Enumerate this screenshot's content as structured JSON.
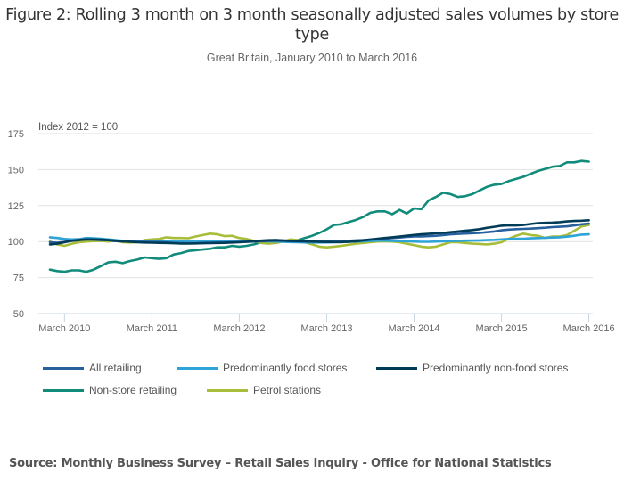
{
  "chart_data": {
    "type": "line",
    "title": "Figure 2: Rolling 3 month on 3 month seasonally adjusted sales volumes by store type",
    "subtitle": "Great Britain, January 2010 to March 2016",
    "ylabel": "Index 2012 = 100",
    "xlabel": "",
    "ylim": [
      50,
      175
    ],
    "yticks": [
      50,
      75,
      100,
      125,
      150,
      175
    ],
    "xticks": [
      "March 2010",
      "March 2011",
      "March 2012",
      "March 2013",
      "March 2014",
      "March 2015",
      "March 2016"
    ],
    "x_start": "January 2010",
    "x_end": "March 2016",
    "x_frequency": "monthly",
    "grid": true,
    "legend_position": "bottom",
    "series": [
      {
        "name": "All retailing",
        "color": "#27609c",
        "values": [
          99.5,
          99.2,
          99.8,
          100.6,
          101.2,
          101.5,
          101.3,
          101.0,
          100.9,
          100.3,
          100.2,
          100.0,
          99.9,
          99.8,
          99.7,
          99.6,
          99.4,
          99.0,
          98.8,
          98.8,
          98.9,
          99.0,
          99.2,
          99.3,
          99.4,
          99.5,
          99.7,
          99.8,
          100.0,
          100.2,
          100.4,
          100.6,
          100.5,
          100.3,
          100.2,
          100.1,
          100.0,
          100.0,
          100.1,
          100.2,
          100.3,
          100.5,
          100.8,
          101.0,
          101.3,
          101.6,
          102.0,
          102.4,
          102.8,
          103.2,
          103.5,
          103.6,
          103.8,
          104.0,
          104.5,
          105.0,
          105.3,
          105.6,
          105.8,
          106.0,
          106.5,
          107.0,
          107.8,
          108.3,
          108.6,
          108.8,
          109.0,
          109.3,
          109.6,
          110.0,
          110.3,
          110.6,
          111.2,
          112.0,
          112.5
        ]
      },
      {
        "name": "Predominantly food stores",
        "color": "#2ea3d7",
        "values": [
          103.0,
          102.5,
          101.8,
          101.5,
          101.6,
          102.5,
          102.2,
          102.0,
          101.5,
          101.0,
          100.5,
          100.2,
          100.0,
          100.0,
          100.1,
          100.0,
          100.0,
          100.2,
          100.3,
          100.4,
          100.5,
          100.5,
          100.5,
          100.3,
          100.2,
          100.2,
          100.4,
          100.6,
          100.5,
          100.3,
          100.2,
          100.0,
          99.8,
          99.6,
          99.5,
          99.4,
          99.3,
          99.3,
          99.4,
          99.5,
          99.6,
          99.8,
          100.0,
          100.2,
          100.4,
          100.6,
          100.6,
          100.5,
          100.3,
          100.2,
          100.0,
          99.8,
          99.8,
          100.0,
          100.2,
          100.4,
          100.5,
          100.6,
          100.7,
          100.8,
          101.0,
          101.2,
          101.5,
          101.8,
          102.0,
          102.0,
          102.2,
          102.4,
          102.6,
          102.8,
          103.0,
          103.4,
          104.0,
          104.8,
          105.0
        ]
      },
      {
        "name": "Predominantly non-food stores",
        "color": "#003c57",
        "values": [
          98.0,
          98.5,
          99.5,
          100.5,
          101.0,
          101.5,
          101.5,
          101.3,
          101.0,
          100.6,
          100.2,
          99.8,
          99.5,
          99.3,
          99.2,
          99.1,
          99.0,
          98.8,
          98.6,
          98.6,
          98.7,
          98.8,
          98.9,
          99.0,
          99.1,
          99.3,
          99.5,
          99.8,
          100.2,
          100.6,
          100.9,
          101.0,
          100.8,
          100.5,
          100.3,
          100.2,
          100.0,
          99.8,
          99.7,
          99.6,
          99.6,
          99.8,
          100.2,
          100.8,
          101.4,
          102.0,
          102.5,
          103.0,
          103.5,
          104.0,
          104.6,
          105.0,
          105.4,
          105.8,
          106.0,
          106.5,
          107.0,
          107.5,
          108.0,
          108.6,
          109.5,
          110.3,
          111.0,
          111.3,
          111.2,
          111.5,
          112.2,
          112.8,
          113.0,
          113.2,
          113.5,
          114.0,
          114.3,
          114.5,
          114.8
        ]
      },
      {
        "name": "Non-store retailing",
        "color": "#118c7b",
        "values": [
          80.5,
          79.5,
          79.0,
          80.0,
          80.0,
          79.0,
          80.5,
          83.0,
          85.5,
          86.0,
          85.0,
          86.5,
          87.5,
          89.0,
          88.5,
          88.0,
          88.5,
          91.0,
          92.0,
          93.5,
          94.0,
          94.5,
          95.0,
          96.0,
          96.0,
          97.0,
          96.5,
          97.0,
          98.0,
          99.5,
          100.0,
          101.0,
          100.5,
          100.0,
          101.0,
          102.5,
          104.0,
          106.0,
          108.5,
          111.5,
          112.0,
          113.5,
          115.0,
          117.0,
          120.0,
          121.0,
          121.0,
          119.0,
          122.0,
          119.5,
          123.0,
          122.5,
          128.5,
          131.0,
          134.0,
          133.0,
          131.0,
          131.5,
          133.0,
          135.5,
          138.0,
          139.5,
          140.0,
          142.0,
          143.5,
          145.0,
          147.0,
          149.0,
          150.5,
          152.0,
          152.5,
          155.0,
          155.0,
          156.0,
          155.5
        ]
      },
      {
        "name": "Petrol stations",
        "color": "#a8bd3a",
        "values": [
          100.0,
          98.0,
          97.0,
          98.5,
          99.5,
          100.0,
          100.3,
          100.5,
          100.0,
          100.5,
          99.5,
          99.3,
          99.5,
          101.0,
          101.5,
          101.8,
          103.0,
          102.5,
          102.5,
          102.3,
          103.5,
          104.5,
          105.5,
          105.0,
          103.8,
          104.0,
          102.5,
          101.8,
          100.5,
          99.0,
          98.5,
          99.0,
          100.0,
          101.5,
          101.0,
          99.5,
          98.0,
          96.5,
          96.0,
          96.5,
          97.0,
          97.8,
          98.5,
          99.0,
          99.5,
          100.0,
          100.2,
          100.0,
          99.5,
          98.5,
          97.5,
          96.5,
          96.0,
          96.5,
          98.0,
          99.5,
          99.5,
          99.0,
          98.5,
          98.3,
          98.0,
          98.5,
          99.5,
          102.0,
          104.0,
          105.5,
          104.5,
          104.0,
          102.5,
          103.5,
          103.5,
          104.5,
          107.5,
          110.5,
          111.5
        ]
      }
    ]
  },
  "source": "Source: Monthly Business Survey – Retail Sales Inquiry - Office for National Statistics"
}
